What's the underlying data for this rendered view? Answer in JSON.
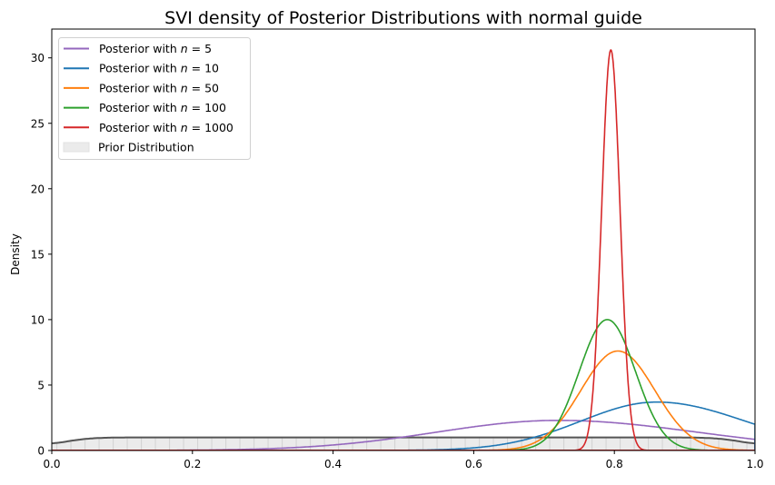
{
  "chart_data": {
    "type": "line",
    "title": "SVI density of Posterior Distributions with normal guide",
    "xlabel": "",
    "ylabel": "Density",
    "xlim": [
      0.0,
      1.0
    ],
    "ylim": [
      0,
      32.2
    ],
    "xticks": [
      "0.0",
      "0.2",
      "0.4",
      "0.6",
      "0.8",
      "1.0"
    ],
    "xtick_values": [
      0.0,
      0.2,
      0.4,
      0.6,
      0.8,
      1.0
    ],
    "yticks": [
      "0",
      "5",
      "10",
      "15",
      "20",
      "25",
      "30"
    ],
    "ytick_values": [
      0,
      5,
      10,
      15,
      20,
      25,
      30
    ],
    "grid": false,
    "legend_position": "top-left",
    "series": [
      {
        "name": "Posterior with n = 5",
        "prefix": "Posterior with ",
        "var": "n",
        "suffix": " = 5",
        "color": "#9467bd",
        "mode": 0.72,
        "peak_density": 2.3,
        "density_at_1": 0.85
      },
      {
        "name": "Posterior with n = 10",
        "prefix": "Posterior with ",
        "var": "n",
        "suffix": " = 10",
        "color": "#1f77b4",
        "mode": 0.86,
        "peak_density": 3.7,
        "density_at_1": 2.0
      },
      {
        "name": "Posterior with n = 50",
        "prefix": "Posterior with ",
        "var": "n",
        "suffix": " = 50",
        "color": "#ff7f0e",
        "mode": 0.805,
        "peak_density": 7.6,
        "density_at_1": 0.02
      },
      {
        "name": "Posterior with n = 100",
        "prefix": "Posterior with ",
        "var": "n",
        "suffix": " = 100",
        "color": "#2ca02c",
        "mode": 0.79,
        "peak_density": 10.0,
        "density_at_1": 0.0
      },
      {
        "name": "Posterior with n = 1000",
        "prefix": "Posterior with ",
        "var": "n",
        "suffix": " = 1000",
        "color": "#d62728",
        "mode": 0.795,
        "peak_density": 30.6,
        "density_at_1": 0.0
      }
    ],
    "prior": {
      "name": "Prior Distribution",
      "color": "#555555",
      "fill": "#ebebeb",
      "density": 1.0,
      "density_at_edges": 0.55
    }
  }
}
